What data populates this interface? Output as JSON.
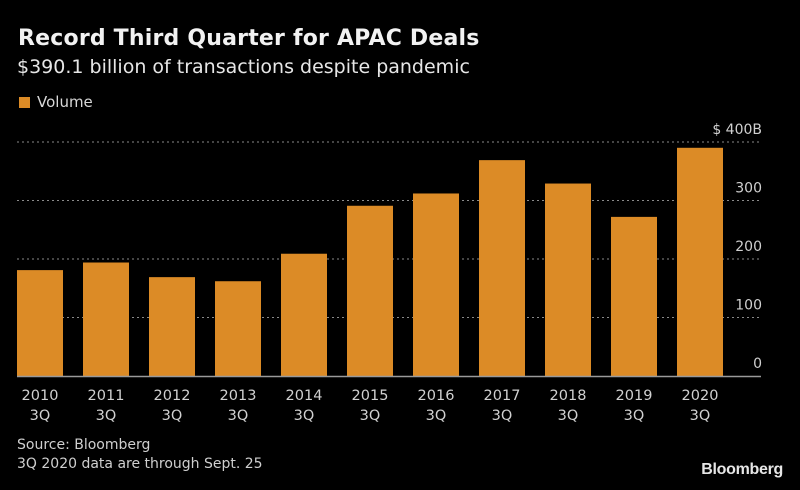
{
  "header": {
    "title": "Record Third Quarter for APAC Deals",
    "subtitle": "$390.1 billion of transactions despite pandemic"
  },
  "footer": {
    "source": "Source: Bloomberg",
    "note": "3Q 2020 data are through Sept. 25",
    "brand": "Bloomberg"
  },
  "colors": {
    "background": "#000000",
    "bar": "#dc8b26",
    "grid": "#8a8a8a",
    "axis": "#9a9a9a"
  },
  "chart_data": {
    "type": "bar",
    "title": "Record Third Quarter for APAC Deals",
    "subtitle": "$390.1 billion of transactions despite pandemic",
    "legend": [
      "Volume"
    ],
    "legend_position": "top-left",
    "xlabel": "",
    "ylabel": "",
    "y_axis_side": "right",
    "ylim": [
      0,
      400
    ],
    "yticks": [
      0,
      100,
      200,
      300,
      400
    ],
    "ytick_labels": [
      "0",
      "100",
      "200",
      "300",
      "$ 400B"
    ],
    "grid": true,
    "categories": [
      [
        "2010",
        "3Q"
      ],
      [
        "2011",
        "3Q"
      ],
      [
        "2012",
        "3Q"
      ],
      [
        "2013",
        "3Q"
      ],
      [
        "2014",
        "3Q"
      ],
      [
        "2015",
        "3Q"
      ],
      [
        "2016",
        "3Q"
      ],
      [
        "2017",
        "3Q"
      ],
      [
        "2018",
        "3Q"
      ],
      [
        "2019",
        "3Q"
      ],
      [
        "2020",
        "3Q"
      ]
    ],
    "series": [
      {
        "name": "Volume",
        "values": [
          181,
          194,
          169,
          162,
          209,
          291,
          312,
          369,
          329,
          272,
          390.1
        ]
      }
    ]
  }
}
